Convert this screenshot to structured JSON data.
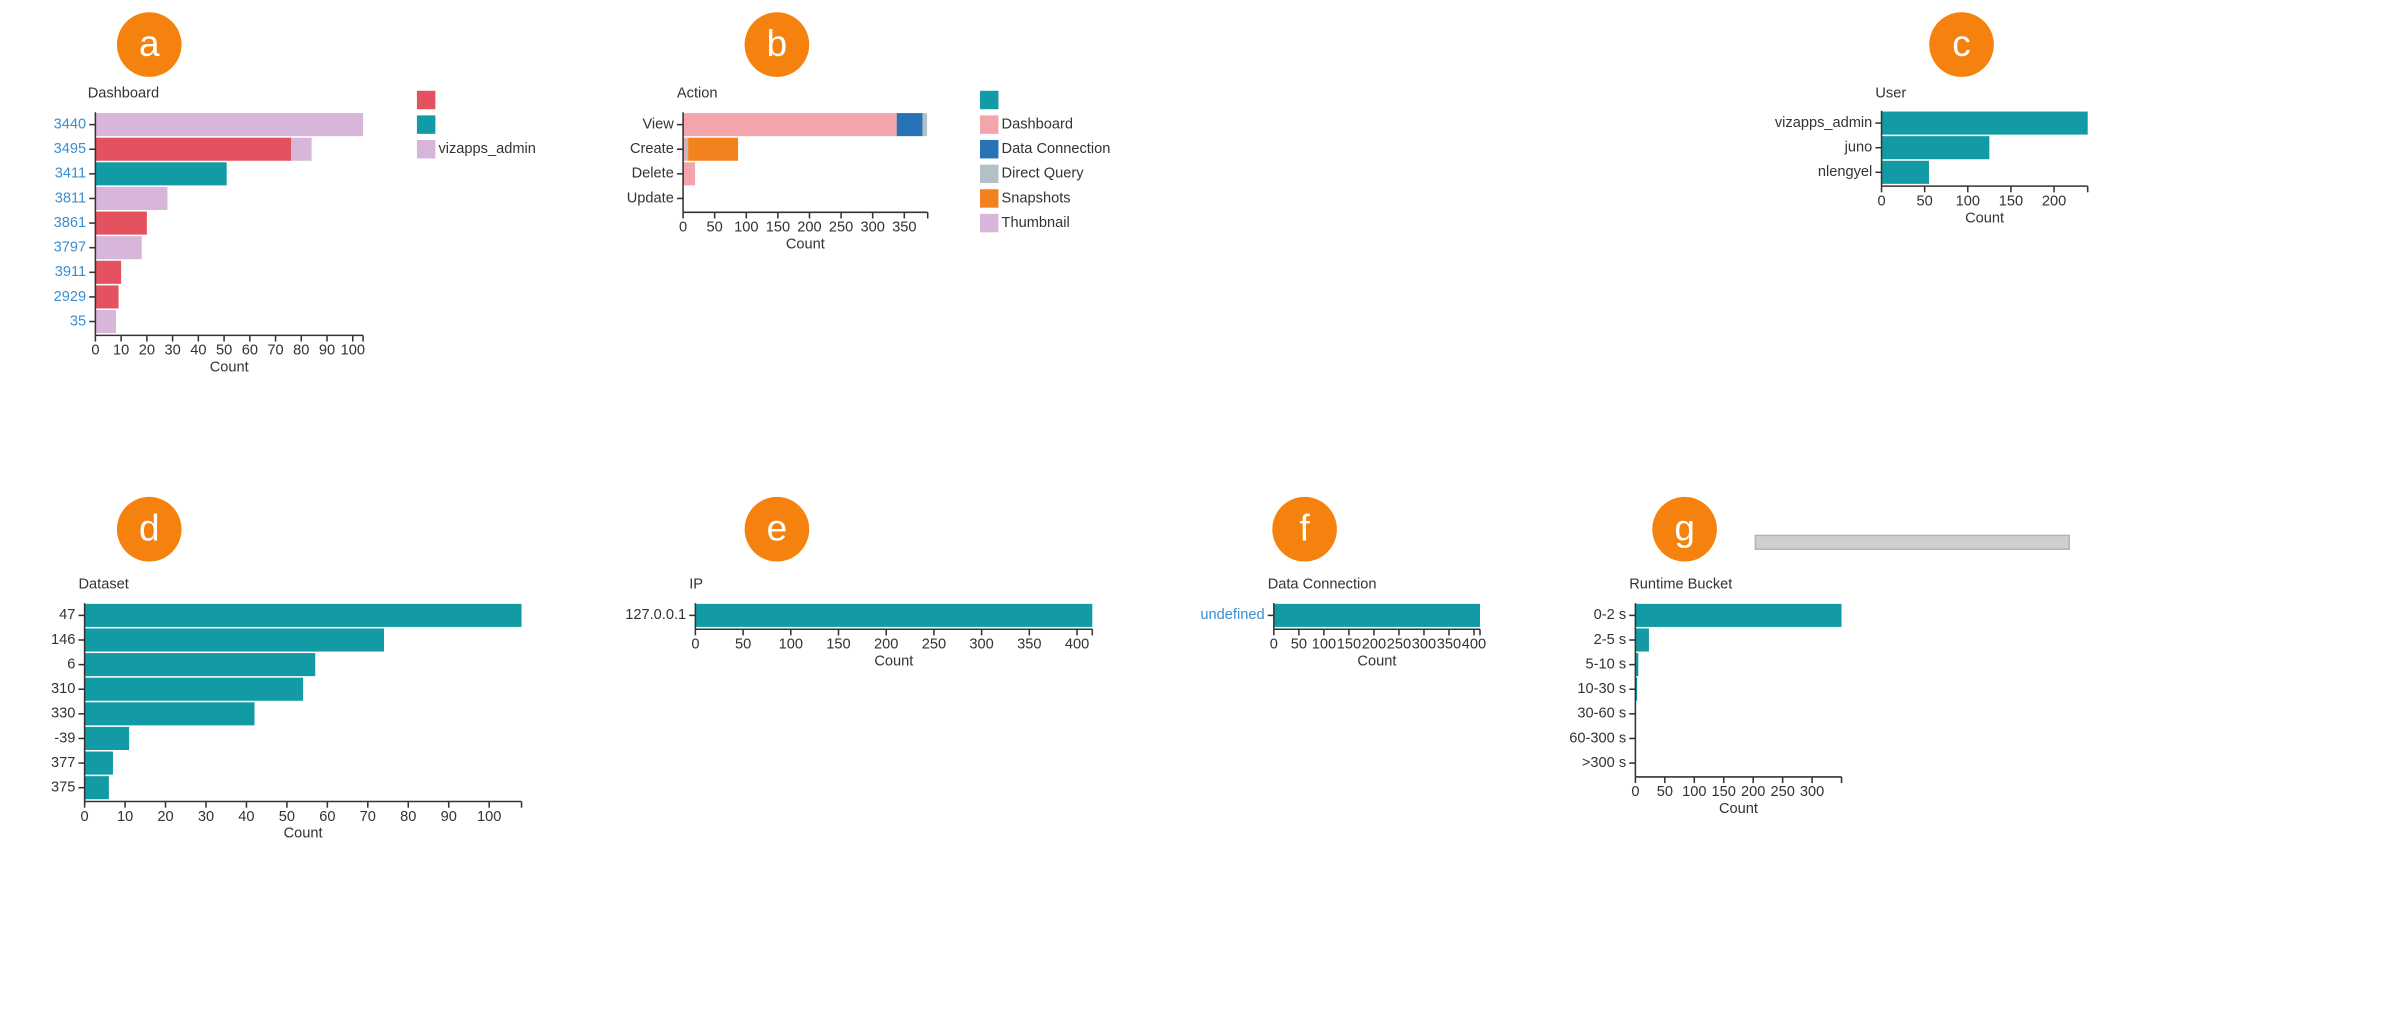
{
  "chart_data": [
    {
      "type": "bar",
      "label": "a",
      "title": "Dashboard",
      "stacked": true,
      "tick_label_color": "#3a8fd1",
      "categories": [
        "3440",
        "3495",
        "3411",
        "3811",
        "3861",
        "3797",
        "3911",
        "2929",
        "35"
      ],
      "series": [
        {
          "color": "#e45260",
          "values": [
            null,
            76,
            null,
            null,
            20,
            null,
            10,
            9,
            null
          ]
        },
        {
          "color": "#129aa5",
          "values": [
            null,
            null,
            51,
            null,
            null,
            null,
            null,
            null,
            null
          ]
        },
        {
          "name": "vizapps_admin",
          "color": "#d8b6da",
          "values": [
            104,
            8,
            null,
            28,
            null,
            18,
            null,
            null,
            8
          ]
        }
      ],
      "xlim": [
        0,
        104
      ],
      "xticks": [
        0,
        10,
        20,
        30,
        40,
        50,
        60,
        70,
        80,
        90,
        100
      ],
      "xlabel": "Count"
    },
    {
      "type": "bar",
      "label": "b",
      "title": "Action",
      "stacked": true,
      "categories": [
        "View",
        "Create",
        "Delete",
        "Update"
      ],
      "series": [
        {
          "color": "#129aa5",
          "values": [
            null,
            null,
            null,
            null
          ]
        },
        {
          "name": "Dashboard",
          "color": "#f2a5ab",
          "values": [
            338,
            4,
            19,
            null
          ]
        },
        {
          "name": "Data Connection",
          "color": "#2a72b8",
          "values": [
            41,
            null,
            null,
            null
          ]
        },
        {
          "name": "Direct Query",
          "color": "#b3c1c6",
          "values": [
            7,
            4,
            null,
            null
          ]
        },
        {
          "name": "Snapshots",
          "color": "#f2821e",
          "values": [
            null,
            79,
            null,
            null
          ]
        },
        {
          "name": "Thumbnail",
          "color": "#d8b6da",
          "values": [
            null,
            null,
            null,
            null
          ]
        }
      ],
      "xlim": [
        0,
        387
      ],
      "xticks": [
        0,
        50,
        100,
        150,
        200,
        250,
        300,
        350
      ],
      "xlabel": "Count"
    },
    {
      "type": "bar",
      "label": "c",
      "title": "User",
      "color": "#129aa5",
      "categories": [
        "vizapps_admin",
        "juno",
        "nlengyel"
      ],
      "values": [
        239,
        125,
        55
      ],
      "xlim": [
        0,
        239
      ],
      "xticks": [
        0,
        50,
        100,
        150,
        200
      ],
      "xlabel": "Count"
    },
    {
      "type": "bar",
      "label": "d",
      "title": "Dataset",
      "color": "#129aa5",
      "categories": [
        "47",
        "146",
        "6",
        "310",
        "330",
        "-39",
        "377",
        "375"
      ],
      "values": [
        108,
        74,
        57,
        54,
        42,
        11,
        7,
        6
      ],
      "xlim": [
        0,
        108
      ],
      "xticks": [
        0,
        10,
        20,
        30,
        40,
        50,
        60,
        70,
        80,
        90,
        100
      ],
      "xlabel": "Count"
    },
    {
      "type": "bar",
      "label": "e",
      "title": "IP",
      "color": "#129aa5",
      "categories": [
        "127.0.0.1"
      ],
      "values": [
        416
      ],
      "xlim": [
        0,
        416
      ],
      "xticks": [
        0,
        50,
        100,
        150,
        200,
        250,
        300,
        350,
        400
      ],
      "xlabel": "Count"
    },
    {
      "type": "bar",
      "label": "f",
      "title": "Data Connection",
      "color": "#129aa5",
      "tick_label_color": "#3a8fd1",
      "categories": [
        "undefined"
      ],
      "values": [
        412
      ],
      "xlim": [
        0,
        412
      ],
      "xticks": [
        0,
        50,
        100,
        150,
        200,
        250,
        300,
        350,
        400
      ],
      "xlabel": "Count"
    },
    {
      "type": "bar",
      "label": "g",
      "title": "Runtime Bucket",
      "color": "#129aa5",
      "categories": [
        "0-2 s",
        "2-5 s",
        "5-10 s",
        "10-30 s",
        "30-60 s",
        "60-300 s",
        ">300 s"
      ],
      "values": [
        350,
        23,
        5,
        3,
        0,
        0,
        0
      ],
      "xlim": [
        0,
        350
      ],
      "xticks": [
        0,
        50,
        100,
        150,
        200,
        250,
        300
      ],
      "xlabel": "Count"
    }
  ]
}
